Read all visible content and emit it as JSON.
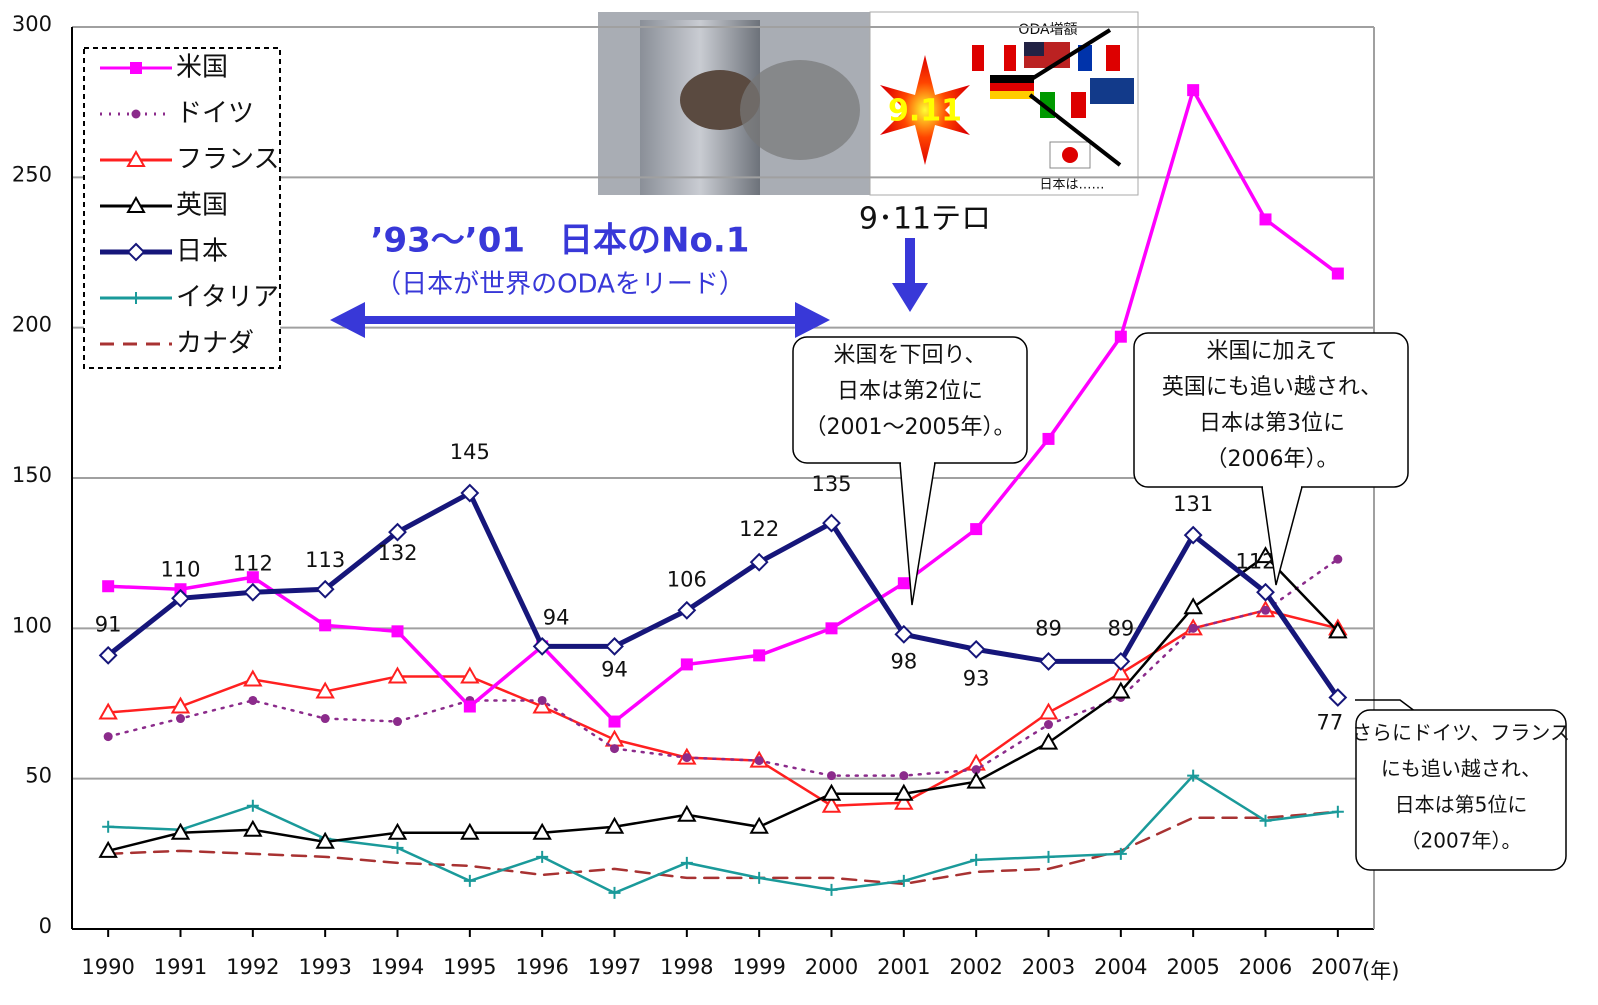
{
  "chart_data": {
    "type": "line",
    "x": [
      1990,
      1991,
      1992,
      1993,
      1994,
      1995,
      1996,
      1997,
      1998,
      1999,
      2000,
      2001,
      2002,
      2003,
      2004,
      2005,
      2006,
      2007
    ],
    "xlim": [
      1989.5,
      2007.5
    ],
    "xticks": [
      1990,
      1991,
      1992,
      1993,
      1994,
      1995,
      1996,
      1997,
      1998,
      1999,
      2000,
      2001,
      2002,
      2003,
      2004,
      2005,
      2006,
      2007
    ],
    "x_unit": "(年)",
    "ylim": [
      0,
      300
    ],
    "yticks": [
      0,
      50,
      100,
      150,
      200,
      250,
      300
    ],
    "grid": true,
    "legend": "top-left",
    "series": [
      {
        "name": "米国",
        "color": "#ff00ff",
        "marker": "square",
        "dash": "solid",
        "values": [
          114,
          113,
          117,
          101,
          99,
          74,
          94,
          69,
          88,
          91,
          100,
          115,
          133,
          163,
          197,
          279,
          236,
          218
        ]
      },
      {
        "name": "ドイツ",
        "color": "#8b2b8b",
        "marker": "dot",
        "dash": "dotted",
        "values": [
          64,
          70,
          76,
          70,
          69,
          76,
          76,
          60,
          57,
          56,
          51,
          51,
          53,
          68,
          77,
          100,
          106,
          123
        ]
      },
      {
        "name": "フランス",
        "color": "#ff2020",
        "marker": "triangle",
        "dash": "solid",
        "values": [
          72,
          74,
          83,
          79,
          84,
          84,
          74,
          63,
          57,
          56,
          41,
          42,
          55,
          72,
          85,
          100,
          106,
          100
        ]
      },
      {
        "name": "英国",
        "color": "#000000",
        "marker": "triangle",
        "dash": "solid",
        "values": [
          26,
          32,
          33,
          29,
          32,
          32,
          32,
          34,
          38,
          34,
          45,
          45,
          49,
          62,
          79,
          107,
          124,
          99
        ]
      },
      {
        "name": "日本",
        "color": "#16167a",
        "marker": "diamond",
        "dash": "solid",
        "values": [
          91,
          110,
          112,
          113,
          132,
          145,
          94,
          94,
          106,
          122,
          135,
          98,
          93,
          89,
          89,
          131,
          112,
          77
        ]
      },
      {
        "name": "イタリア",
        "color": "#1a9a9a",
        "marker": "plus",
        "dash": "solid",
        "values": [
          34,
          33,
          41,
          30,
          27,
          16,
          24,
          12,
          22,
          17,
          13,
          16,
          23,
          24,
          25,
          51,
          36,
          39
        ]
      },
      {
        "name": "カナダ",
        "color": "#a83232",
        "marker": "none",
        "dash": "dashed",
        "values": [
          25,
          26,
          25,
          24,
          22,
          21,
          18,
          20,
          17,
          17,
          17,
          15,
          19,
          20,
          26,
          37,
          37,
          39
        ]
      }
    ],
    "annotations": {
      "period": "’93～’01　日本のNo.1",
      "period_note": "（日本が世界のODAをリード）",
      "event": "9･11テロ",
      "photo_badge": "9.11",
      "photo_oda": "ODA増額",
      "photo_japan": "日本は……",
      "callout_2001": [
        "米国を下回り、",
        "日本は第2位に",
        "（2001～2005年）。"
      ],
      "callout_2006": [
        "米国に加えて",
        "英国にも追い越され、",
        "日本は第3位に",
        "（2006年）。"
      ],
      "callout_2007": [
        "さらにドイツ、フランス",
        "にも追い越され、",
        "日本は第5位に",
        "（2007年）。"
      ]
    }
  }
}
